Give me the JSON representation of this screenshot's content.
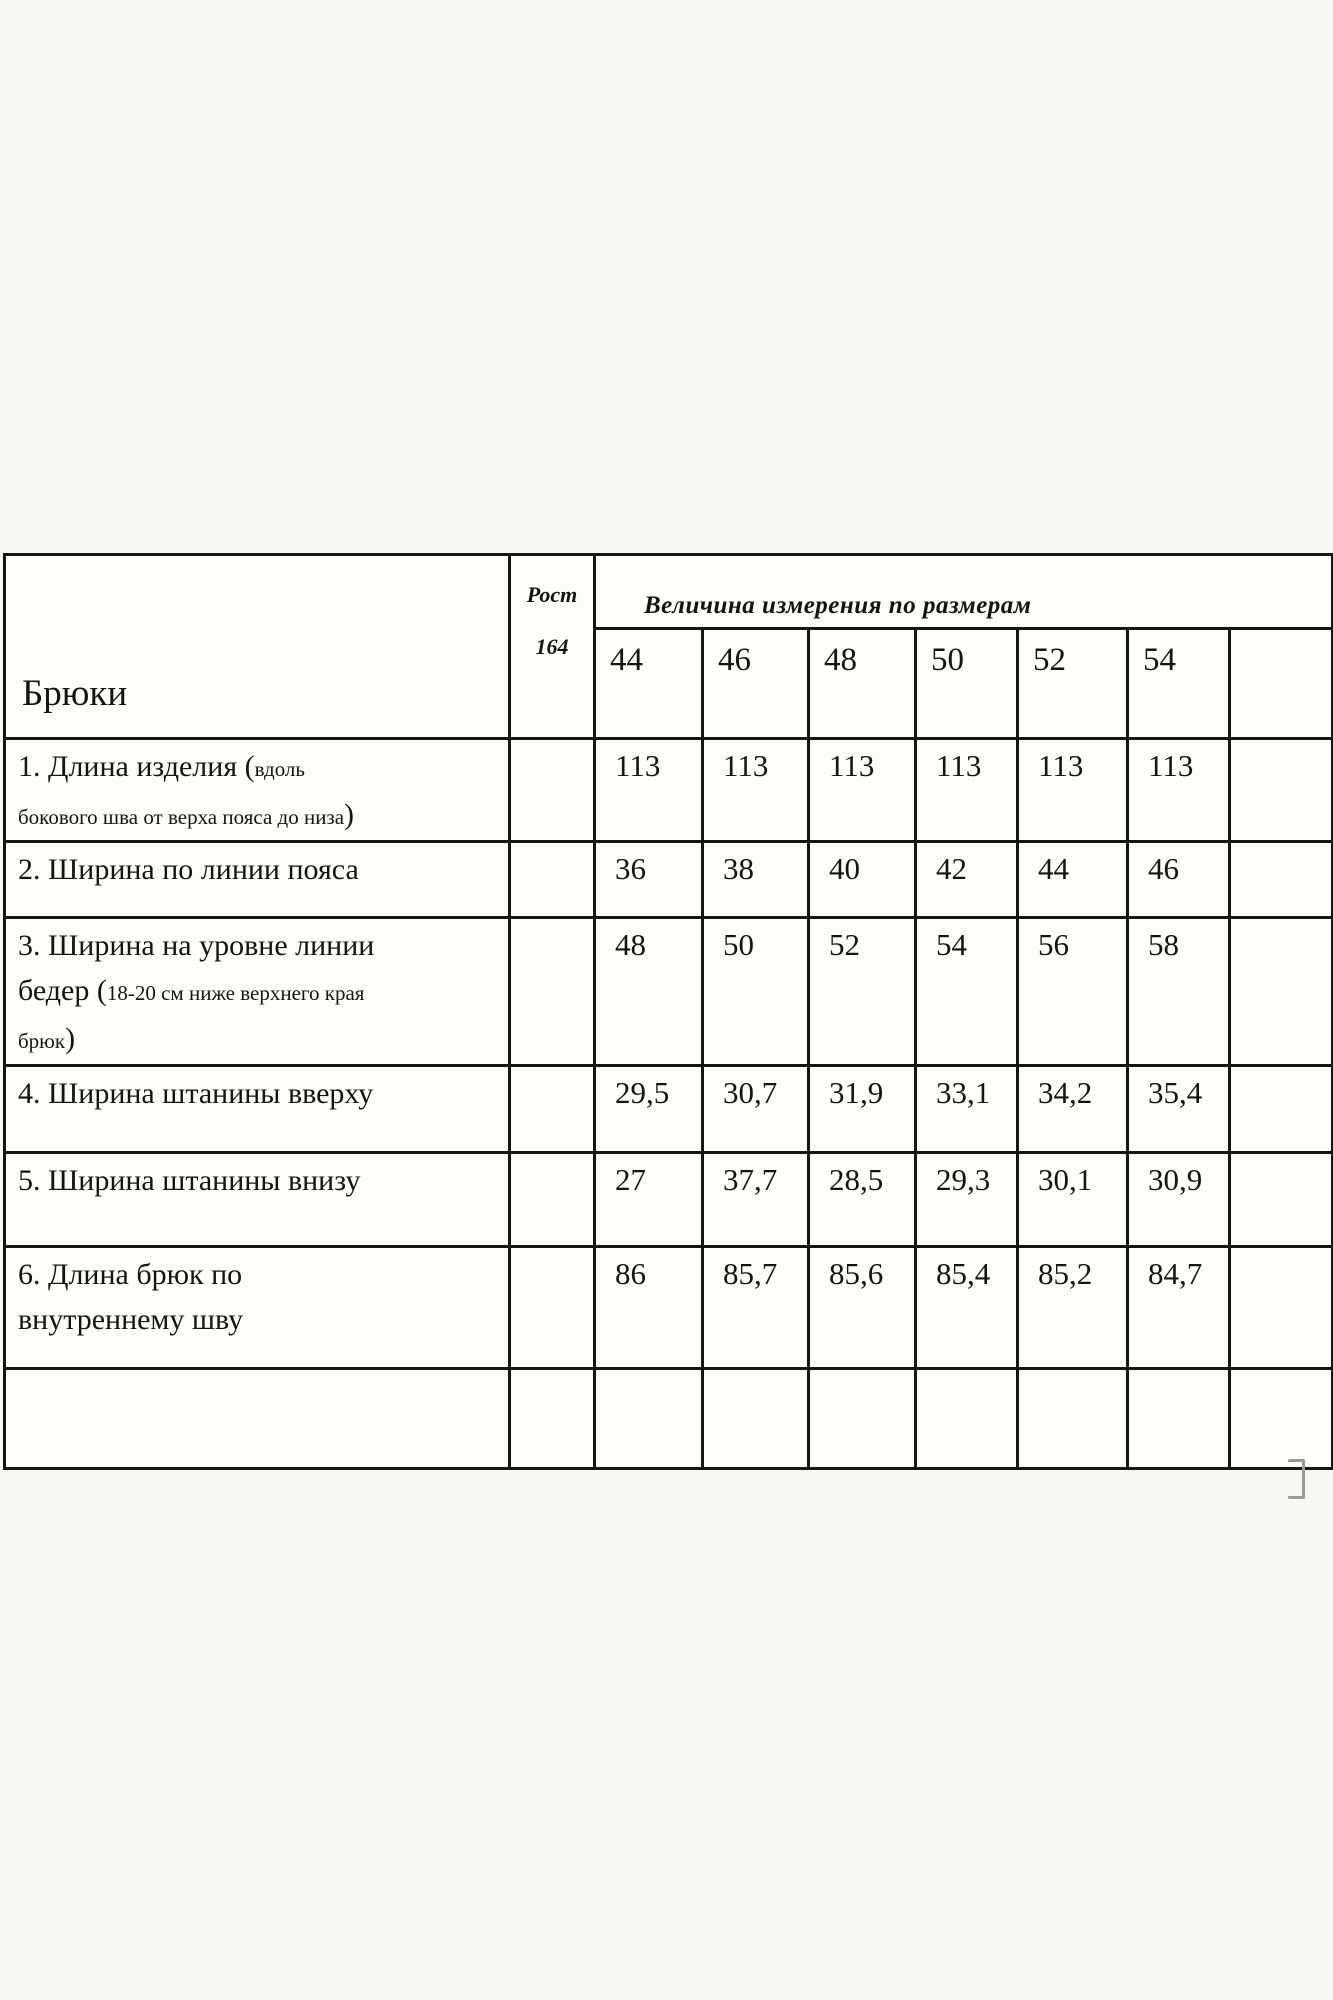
{
  "table": {
    "product": "Брюки",
    "height_label": "Рост",
    "height_value": "164",
    "measures_header": "Величина измерения по размерам",
    "sizes": [
      "44",
      "46",
      "48",
      "50",
      "52",
      "54"
    ],
    "rows": [
      {
        "label": [
          {
            "style": "big",
            "text": "1. Длина изделия ("
          },
          {
            "style": "small",
            "text": "вдоль\nбокового шва от верха пояса до низа"
          },
          {
            "style": "big",
            "text": ")"
          }
        ],
        "values": [
          "113",
          "113",
          "113",
          "113",
          "113",
          "113"
        ]
      },
      {
        "label": [
          {
            "style": "big",
            "text": "2. Ширина по линии пояса"
          }
        ],
        "values": [
          "36",
          "38",
          "40",
          "42",
          "44",
          "46"
        ]
      },
      {
        "label": [
          {
            "style": "big",
            "text": "3. Ширина на уровне линии\nбедер ("
          },
          {
            "style": "small",
            "text": "18-20 см ниже верхнего края\nбрюк"
          },
          {
            "style": "big",
            "text": ")"
          }
        ],
        "values": [
          "48",
          "50",
          "52",
          "54",
          "56",
          "58"
        ]
      },
      {
        "label": [
          {
            "style": "big",
            "text": "4. Ширина штанины вверху"
          }
        ],
        "values": [
          "29,5",
          "30,7",
          "31,9",
          "33,1",
          "34,2",
          "35,4"
        ]
      },
      {
        "label": [
          {
            "style": "big",
            "text": "5. Ширина штанины внизу"
          }
        ],
        "values": [
          "27",
          "37,7",
          "28,5",
          "29,3",
          "30,1",
          "30,9"
        ]
      },
      {
        "label": [
          {
            "style": "big",
            "text": "6. Длина брюк по\nвнутреннему шву"
          }
        ],
        "values": [
          "86",
          "85,7",
          "85,6",
          "85,4",
          "85,2",
          "84,7"
        ]
      },
      {
        "label": [],
        "values": [
          "",
          "",
          "",
          "",
          "",
          ""
        ]
      }
    ]
  }
}
